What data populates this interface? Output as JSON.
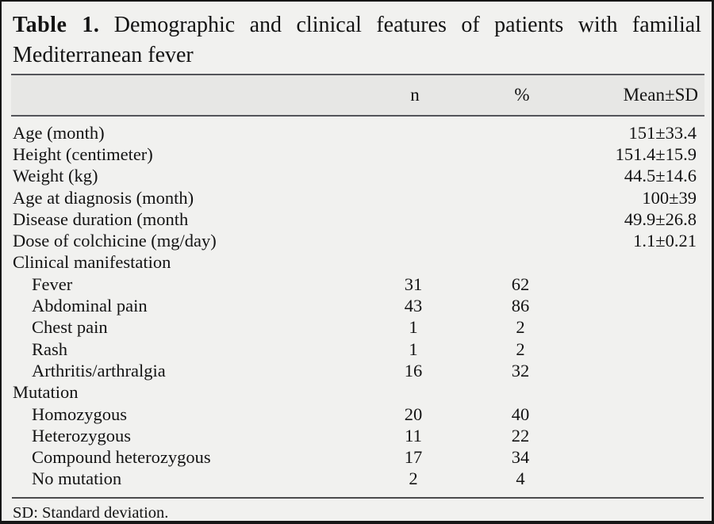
{
  "title": {
    "label": "Table 1.",
    "line1_rest": "Demographic and clinical features of patients with familial",
    "line2": "Mediterranean fever"
  },
  "header": {
    "n": "n",
    "percent": "%",
    "mean_sd": "Mean±SD"
  },
  "rows": [
    {
      "label": "Age (month)",
      "n": "",
      "percent": "",
      "mean_sd": "151±33.4"
    },
    {
      "label": "Height (centimeter)",
      "n": "",
      "percent": "",
      "mean_sd": "151.4±15.9"
    },
    {
      "label": "Weight (kg)",
      "n": "",
      "percent": "",
      "mean_sd": "44.5±14.6"
    },
    {
      "label": "Age at diagnosis (month)",
      "n": "",
      "percent": "",
      "mean_sd": "100±39"
    },
    {
      "label": "Disease duration (month",
      "n": "",
      "percent": "",
      "mean_sd": "49.9±26.8"
    },
    {
      "label": "Dose of colchicine (mg/day)",
      "n": "",
      "percent": "",
      "mean_sd": "1.1±0.21"
    },
    {
      "label": "Clinical manifestation",
      "n": "",
      "percent": "",
      "mean_sd": ""
    },
    {
      "label": "Fever",
      "n": "31",
      "percent": "62",
      "mean_sd": ""
    },
    {
      "label": "Abdominal pain",
      "n": "43",
      "percent": "86",
      "mean_sd": ""
    },
    {
      "label": "Chest pain",
      "n": "1",
      "percent": "2",
      "mean_sd": ""
    },
    {
      "label": "Rash",
      "n": "1",
      "percent": "2",
      "mean_sd": ""
    },
    {
      "label": "Arthritis/arthralgia",
      "n": "16",
      "percent": "32",
      "mean_sd": ""
    },
    {
      "label": "Mutation",
      "n": "",
      "percent": "",
      "mean_sd": ""
    },
    {
      "label": "Homozygous",
      "n": "20",
      "percent": "40",
      "mean_sd": ""
    },
    {
      "label": "Heterozygous",
      "n": "11",
      "percent": "22",
      "mean_sd": ""
    },
    {
      "label": "Compound heterozygous",
      "n": "17",
      "percent": "34",
      "mean_sd": ""
    },
    {
      "label": "No mutation",
      "n": "2",
      "percent": "4",
      "mean_sd": ""
    }
  ],
  "footnote": "SD: Standard deviation.",
  "colors": {
    "panel_background": "#f1f1ef",
    "header_band": "#e7e7e5",
    "frame_border": "#161616",
    "rule": "#54555a",
    "text": "#131313"
  }
}
